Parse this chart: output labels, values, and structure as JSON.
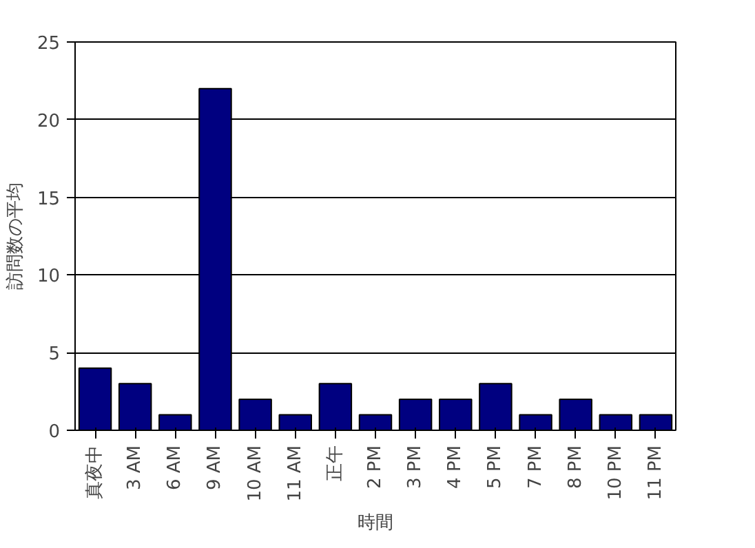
{
  "chart_data": {
    "type": "bar",
    "xlabel": "時間",
    "ylabel": "訪問数の平均",
    "categories": [
      "真夜中",
      "3 AM",
      "6 AM",
      "9 AM",
      "10 AM",
      "11 AM",
      "正午",
      "2 PM",
      "3 PM",
      "4 PM",
      "5 PM",
      "7 PM",
      "8 PM",
      "10 PM",
      "11 PM"
    ],
    "values": [
      4,
      3,
      1,
      22,
      2,
      1,
      3,
      1,
      2,
      2,
      3,
      1,
      2,
      1,
      1
    ],
    "color": "#000080",
    "ylim": [
      0,
      25
    ],
    "yticks": [
      0,
      5,
      10,
      15,
      20,
      25
    ],
    "grid": "y"
  }
}
